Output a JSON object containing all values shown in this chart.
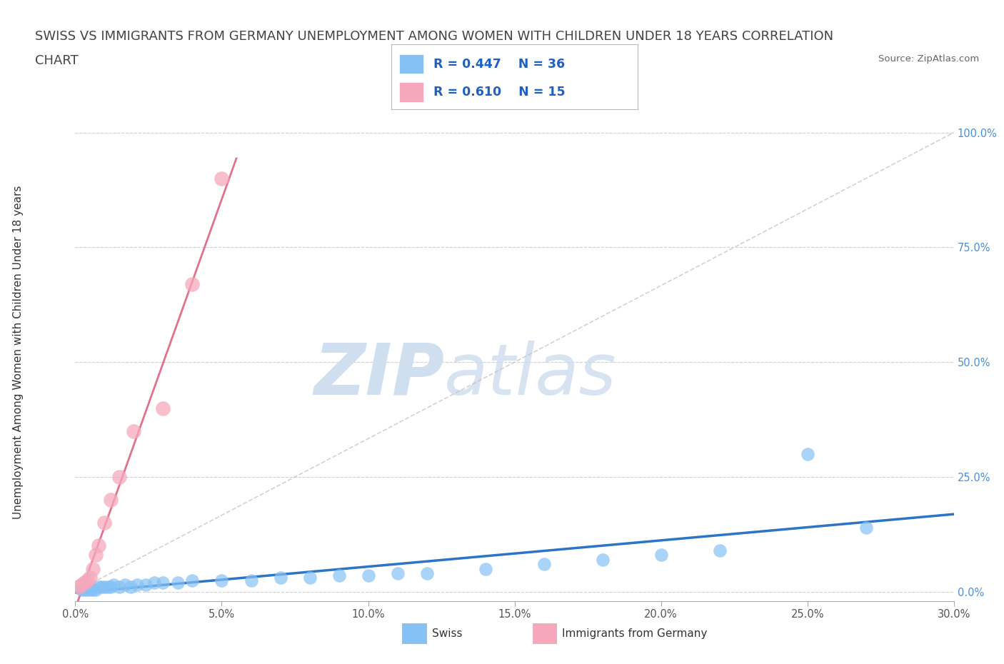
{
  "title_line1": "SWISS VS IMMIGRANTS FROM GERMANY UNEMPLOYMENT AMONG WOMEN WITH CHILDREN UNDER 18 YEARS CORRELATION",
  "title_line2": "CHART",
  "source_text": "Source: ZipAtlas.com",
  "ylabel": "Unemployment Among Women with Children Under 18 years",
  "xlim": [
    0.0,
    0.3
  ],
  "ylim": [
    -0.02,
    1.05
  ],
  "xtick_labels": [
    "0.0%",
    "5.0%",
    "10.0%",
    "15.0%",
    "20.0%",
    "25.0%",
    "30.0%"
  ],
  "xtick_values": [
    0.0,
    0.05,
    0.1,
    0.15,
    0.2,
    0.25,
    0.3
  ],
  "ytick_labels": [
    "0.0%",
    "25.0%",
    "50.0%",
    "75.0%",
    "100.0%"
  ],
  "ytick_values": [
    0.0,
    0.25,
    0.5,
    0.75,
    1.0
  ],
  "swiss_color": "#85C1F5",
  "german_color": "#F5A8BC",
  "trendline_swiss_color": "#1565C0",
  "trendline_german_color": "#E06080",
  "refline_color": "#C0C0C0",
  "watermark_zip": "ZIP",
  "watermark_atlas": "atlas",
  "watermark_color": "#D0DFF0",
  "legend_R_swiss": "0.447",
  "legend_N_swiss": "36",
  "legend_R_german": "0.610",
  "legend_N_german": "15",
  "legend_text_color": "#2060c0",
  "swiss_x": [
    0.002,
    0.003,
    0.004,
    0.005,
    0.006,
    0.007,
    0.008,
    0.009,
    0.01,
    0.011,
    0.012,
    0.013,
    0.015,
    0.017,
    0.019,
    0.021,
    0.024,
    0.027,
    0.03,
    0.035,
    0.04,
    0.05,
    0.06,
    0.07,
    0.08,
    0.09,
    0.1,
    0.11,
    0.12,
    0.14,
    0.16,
    0.18,
    0.2,
    0.22,
    0.25,
    0.27
  ],
  "swiss_y": [
    0.005,
    0.005,
    0.005,
    0.005,
    0.005,
    0.005,
    0.01,
    0.01,
    0.01,
    0.01,
    0.01,
    0.015,
    0.01,
    0.015,
    0.01,
    0.015,
    0.015,
    0.02,
    0.02,
    0.02,
    0.025,
    0.025,
    0.025,
    0.03,
    0.03,
    0.035,
    0.035,
    0.04,
    0.04,
    0.05,
    0.06,
    0.07,
    0.08,
    0.09,
    0.3,
    0.14
  ],
  "german_x": [
    0.001,
    0.002,
    0.003,
    0.004,
    0.005,
    0.006,
    0.007,
    0.008,
    0.01,
    0.012,
    0.015,
    0.02,
    0.03,
    0.04,
    0.05
  ],
  "german_y": [
    0.01,
    0.015,
    0.02,
    0.025,
    0.03,
    0.05,
    0.08,
    0.1,
    0.15,
    0.2,
    0.25,
    0.35,
    0.4,
    0.67,
    0.9
  ],
  "background_color": "#ffffff",
  "grid_color": "#cccccc",
  "title_fontsize": 13,
  "axis_label_fontsize": 11,
  "tick_fontsize": 10.5
}
